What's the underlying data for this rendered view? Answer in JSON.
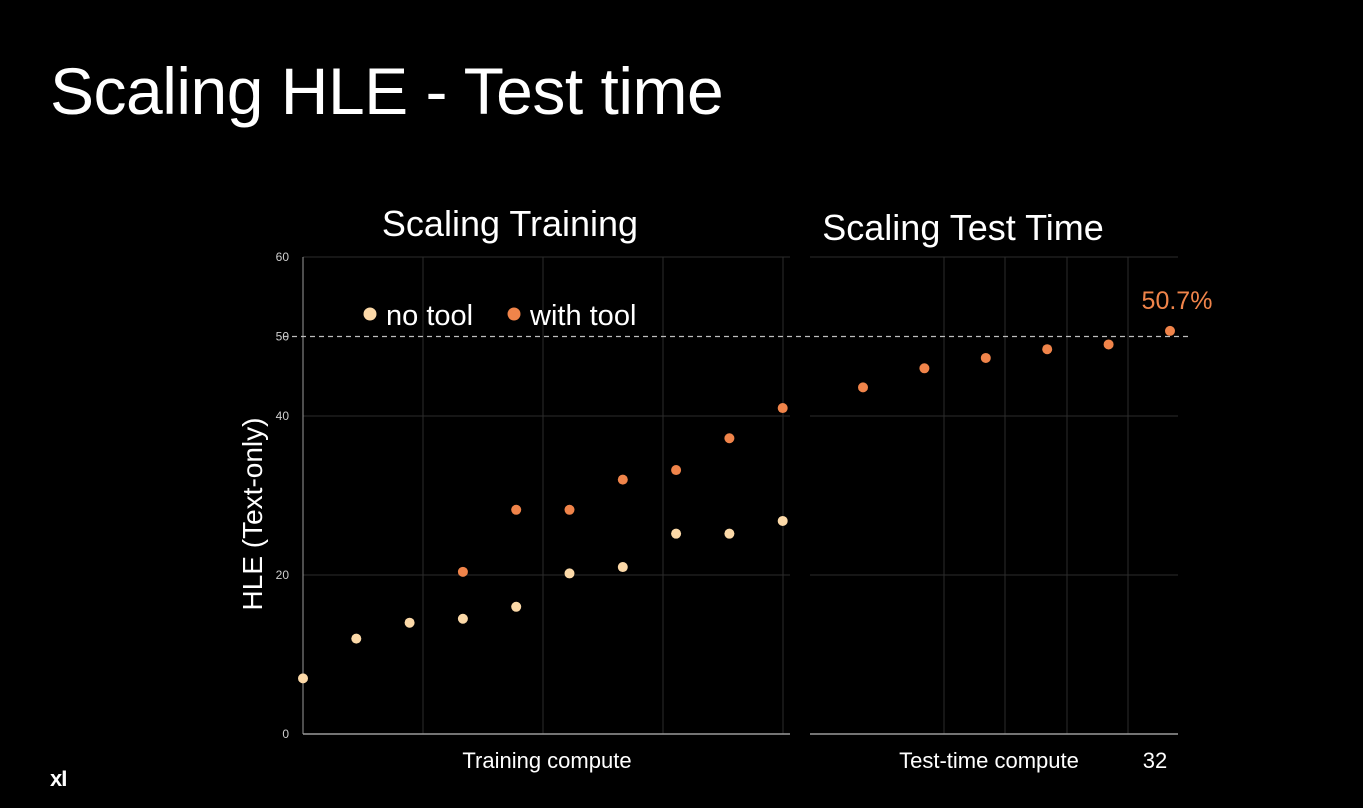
{
  "slide": {
    "title": "Scaling HLE - Test time",
    "page_number": "32",
    "logo": "xI"
  },
  "colors": {
    "background": "#000000",
    "no_tool": "#fcd9a8",
    "with_tool": "#f0844a",
    "reference_line": "#bdbdbd",
    "gridline": "#2c2c2c"
  },
  "chart_data": [
    {
      "type": "scatter",
      "title": "Scaling Training",
      "xlabel": "Training compute",
      "ylabel": "HLE (Text-only)",
      "ylim": [
        0,
        60
      ],
      "yticks": [
        "0",
        "20",
        "40",
        "50",
        "60"
      ],
      "reference_line": 50,
      "grid": true,
      "legend": {
        "placement": "top-left",
        "entries": [
          "no tool",
          "with tool"
        ]
      },
      "series": [
        {
          "name": "no tool",
          "x": [
            1,
            2,
            3,
            4,
            5,
            6,
            7,
            8,
            9,
            10
          ],
          "values": [
            7,
            12,
            14,
            14.5,
            16,
            20.2,
            21,
            25.2,
            25.2,
            26.8
          ]
        },
        {
          "name": "with tool",
          "x": [
            4,
            5,
            6,
            7,
            8,
            9,
            10
          ],
          "values": [
            20.4,
            28.2,
            28.2,
            32,
            33.2,
            37.2,
            41
          ]
        }
      ]
    },
    {
      "type": "scatter",
      "title": "Scaling Test Time",
      "xlabel": "Test-time compute",
      "ylim": [
        0,
        60
      ],
      "reference_line": 50,
      "grid": true,
      "annotations": [
        "50.7%"
      ],
      "series": [
        {
          "name": "with tool",
          "x": [
            1,
            2,
            3,
            4,
            5,
            6
          ],
          "values": [
            43.6,
            46,
            47.3,
            48.4,
            49,
            50.7
          ]
        }
      ]
    }
  ]
}
